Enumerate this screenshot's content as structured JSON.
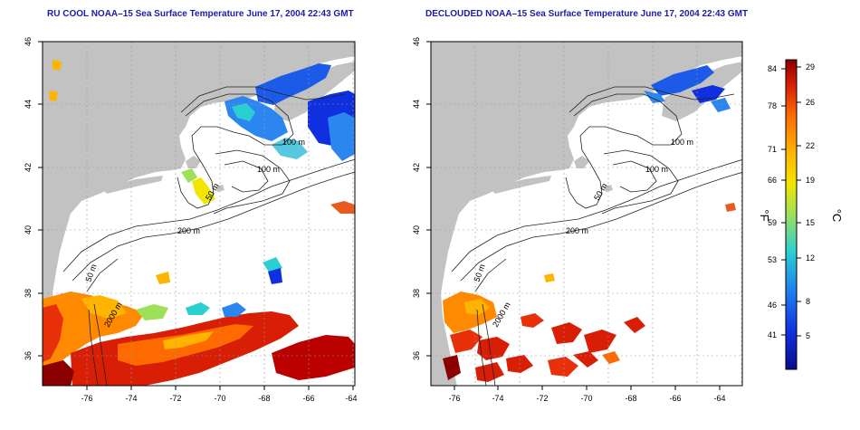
{
  "panels": [
    {
      "title": "RU COOL NOAA–15 Sea Surface Temperature June 17, 2004 22:43 GMT",
      "x_ticks": [
        "-76",
        "-74",
        "-72",
        "-70",
        "-68",
        "-66",
        "-64"
      ],
      "y_ticks": [
        "46",
        "44",
        "42",
        "40",
        "38",
        "36"
      ],
      "contour_labels": [
        "100 m",
        "100 m",
        "50 m",
        "200 m",
        "50 m",
        "2000 m"
      ]
    },
    {
      "title": "DECLOUDED NOAA–15 Sea Surface Temperature June 17, 2004 22:43 GMT",
      "x_ticks": [
        "-76",
        "-74",
        "-72",
        "-70",
        "-68",
        "-66",
        "-64"
      ],
      "y_ticks": [
        "46",
        "44",
        "42",
        "40",
        "38",
        "36"
      ],
      "contour_labels": [
        "100 m",
        "100 m",
        "50 m",
        "200 m",
        "50 m",
        "2000 m"
      ]
    }
  ],
  "colorbar": {
    "fahrenheit_label": "°F",
    "celsius_label": "°C",
    "fahrenheit_ticks": [
      "84",
      "78",
      "71",
      "66",
      "59",
      "53",
      "46",
      "41"
    ],
    "celsius_ticks": [
      "29",
      "26",
      "22",
      "19",
      "15",
      "12",
      "8",
      "5"
    ],
    "colors": [
      "#8b0000",
      "#d81e05",
      "#ff6a00",
      "#ffb400",
      "#f2e600",
      "#9ee05a",
      "#2ccfd0",
      "#1c7ef0",
      "#1030e0",
      "#0a0a90"
    ]
  }
}
